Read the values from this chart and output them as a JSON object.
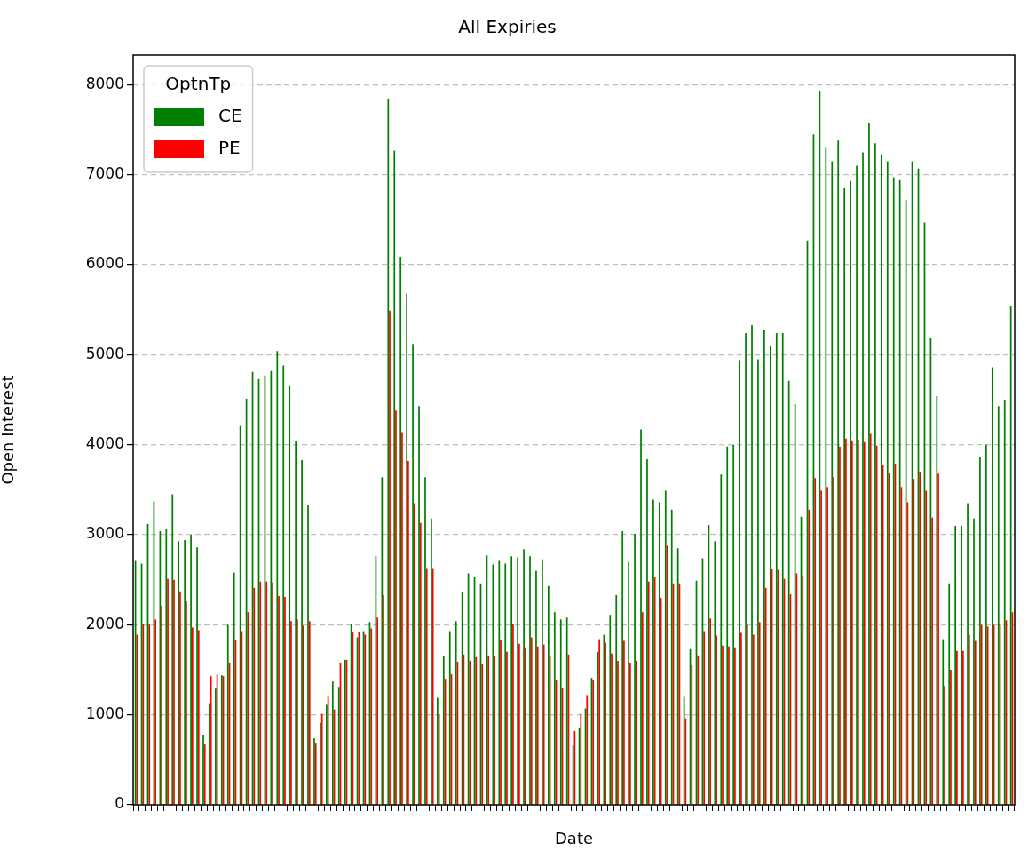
{
  "chart_data": {
    "type": "bar",
    "title": "All Expiries",
    "xlabel": "Date",
    "ylabel": "Open Interest",
    "legend_title": "OptnTp",
    "legend": "top left",
    "grid": "y",
    "line_style": "dashed",
    "categories": [
      null,
      null,
      null,
      null,
      null,
      null,
      null,
      null,
      null,
      null,
      null,
      null,
      null,
      null,
      null,
      null,
      null,
      null,
      null,
      null,
      null,
      null,
      null,
      null,
      null,
      null,
      null,
      null,
      null,
      null,
      null,
      null,
      null,
      null,
      null,
      null,
      null,
      null,
      null,
      null,
      null,
      null,
      null,
      null,
      null,
      null,
      null,
      null,
      null,
      null,
      null,
      null,
      null,
      null,
      null,
      null,
      null,
      null,
      null,
      null,
      null,
      null,
      null,
      null,
      null,
      null,
      null,
      null,
      null,
      null,
      null,
      null,
      null,
      null,
      null,
      null,
      null,
      null,
      null,
      null,
      null,
      null,
      null,
      null,
      null,
      null,
      null,
      null,
      null,
      null,
      null,
      null,
      null,
      null,
      null,
      null,
      null,
      null,
      null,
      null,
      null,
      null,
      null,
      null,
      null,
      null,
      null,
      null,
      null,
      null,
      null,
      null,
      null,
      null,
      null,
      null,
      null,
      null,
      null,
      null,
      null,
      null,
      null,
      null,
      null,
      null,
      null,
      null,
      null,
      null,
      null,
      null,
      null,
      null,
      null,
      null,
      null,
      null,
      null,
      null,
      null,
      null,
      null
    ],
    "ylim": [
      0,
      8330
    ],
    "yticks": [
      0,
      1000,
      2000,
      3000,
      4000,
      5000,
      6000,
      7000,
      8000
    ],
    "series": [
      {
        "name": "CE",
        "color": "#008000",
        "values": [
          2720,
          2680,
          3120,
          3370,
          3040,
          3070,
          3450,
          2930,
          2940,
          3000,
          2860,
          780,
          1130,
          1290,
          1440,
          2000,
          2580,
          4220,
          4510,
          4810,
          4730,
          4770,
          4820,
          5040,
          4880,
          4660,
          4040,
          3830,
          3330,
          740,
          910,
          1110,
          1370,
          1310,
          1610,
          2010,
          1860,
          1930,
          2030,
          2760,
          3640,
          7840,
          7270,
          6090,
          5680,
          5120,
          4430,
          3640,
          3180,
          1190,
          1650,
          1930,
          2040,
          2370,
          2570,
          2530,
          2460,
          2770,
          2670,
          2720,
          2680,
          2760,
          2750,
          2840,
          2760,
          2600,
          2730,
          2430,
          2140,
          2060,
          2080,
          660,
          860,
          1070,
          1410,
          1700,
          1890,
          2110,
          2330,
          3040,
          2700,
          3010,
          4170,
          3840,
          3390,
          3360,
          3490,
          3280,
          2850,
          1200,
          1730,
          2490,
          2740,
          3110,
          2930,
          3670,
          3980,
          4000,
          4940,
          5240,
          5330,
          4950,
          5280,
          5100,
          5240,
          5240,
          4710,
          4450,
          3200,
          6270,
          7450,
          7930,
          7300,
          7150,
          7380,
          6850,
          6930,
          7100,
          7250,
          7580,
          7350,
          7230,
          7150,
          6970,
          6940,
          6720,
          7150,
          7070,
          6470,
          5190,
          4540,
          1840,
          2460,
          3100,
          3100,
          3350,
          3180,
          3860,
          4000,
          4860,
          4430,
          4500,
          5540
        ]
      },
      {
        "name": "PE",
        "color": "#ff0000",
        "values": [
          1890,
          2010,
          2010,
          2060,
          2210,
          2510,
          2500,
          2370,
          2270,
          1970,
          1940,
          670,
          1430,
          1450,
          1430,
          1580,
          1830,
          1930,
          2140,
          2410,
          2480,
          2480,
          2470,
          2320,
          2310,
          2040,
          2060,
          1990,
          2040,
          690,
          1010,
          1200,
          1060,
          1580,
          1610,
          1920,
          1920,
          1890,
          1960,
          2080,
          2330,
          5490,
          4380,
          4140,
          3820,
          3350,
          3130,
          2630,
          2630,
          1000,
          1400,
          1450,
          1590,
          1670,
          1600,
          1640,
          1570,
          1660,
          1650,
          1830,
          1700,
          2010,
          1790,
          1750,
          1860,
          1760,
          1780,
          1650,
          1390,
          1300,
          1670,
          820,
          1010,
          1220,
          1390,
          1840,
          1800,
          1680,
          1600,
          1820,
          1580,
          1600,
          2140,
          2480,
          2530,
          2300,
          2880,
          2460,
          2460,
          960,
          1550,
          1660,
          1930,
          2070,
          1880,
          1770,
          1760,
          1750,
          1910,
          2000,
          1890,
          2030,
          2410,
          2620,
          2610,
          2510,
          2340,
          2570,
          2550,
          3280,
          3630,
          3490,
          3530,
          3640,
          3980,
          4070,
          4050,
          4060,
          4030,
          4120,
          3990,
          3770,
          3690,
          3790,
          3530,
          3360,
          3620,
          3700,
          3490,
          3190,
          3680,
          1320,
          1500,
          1710,
          1710,
          1890,
          1820,
          2000,
          1980,
          2000,
          2010,
          2050,
          2140
        ]
      }
    ]
  }
}
